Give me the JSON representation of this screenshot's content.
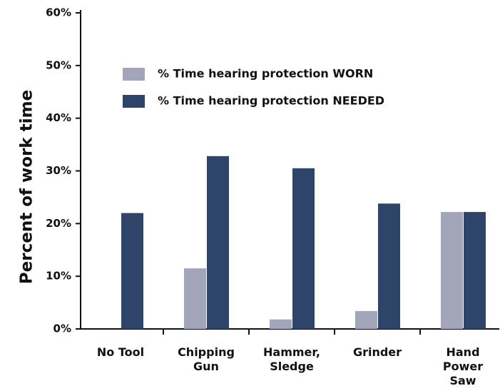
{
  "chart_data": {
    "type": "bar",
    "y_label": "Percent of work time",
    "categories": [
      "No Tool",
      "Chipping Gun",
      "Hammer, Sledge",
      "Grinder",
      "Hand Power Saw"
    ],
    "series": [
      {
        "name": "% Time hearing protection WORN",
        "color": "#a3a6bb",
        "values": [
          0,
          11.5,
          1.8,
          3.4,
          22.2
        ]
      },
      {
        "name": "% Time hearing protection NEEDED",
        "color": "#2e4468",
        "values": [
          22,
          32.8,
          30.5,
          23.8,
          22.2
        ]
      }
    ],
    "ylim": [
      0,
      60
    ],
    "yticks": [
      {
        "value": 0,
        "label": "0%"
      },
      {
        "value": 10,
        "label": "10%"
      },
      {
        "value": 20,
        "label": "20%"
      },
      {
        "value": 30,
        "label": "30%"
      },
      {
        "value": 40,
        "label": "40%"
      },
      {
        "value": 50,
        "label": "50%"
      },
      {
        "value": 60,
        "label": "60%"
      }
    ]
  }
}
